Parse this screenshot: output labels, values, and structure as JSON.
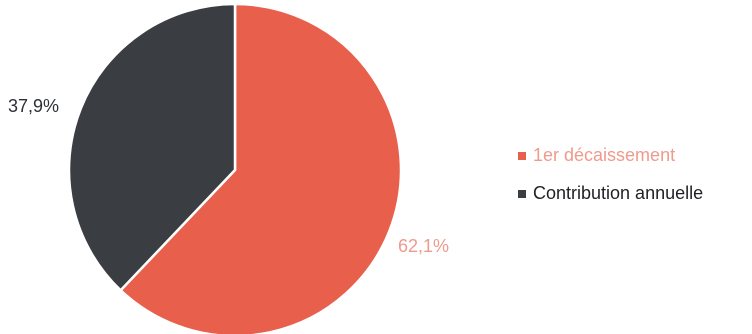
{
  "chart_data": {
    "type": "pie",
    "title": "",
    "legend_position": "right",
    "slices": [
      {
        "name": "1er décaissement",
        "value": 62.1,
        "label": "62,1%",
        "color": "#E8604C"
      },
      {
        "name": "Contribution annuelle",
        "value": 37.9,
        "label": "37,9%",
        "color": "#3A3D42"
      }
    ]
  }
}
